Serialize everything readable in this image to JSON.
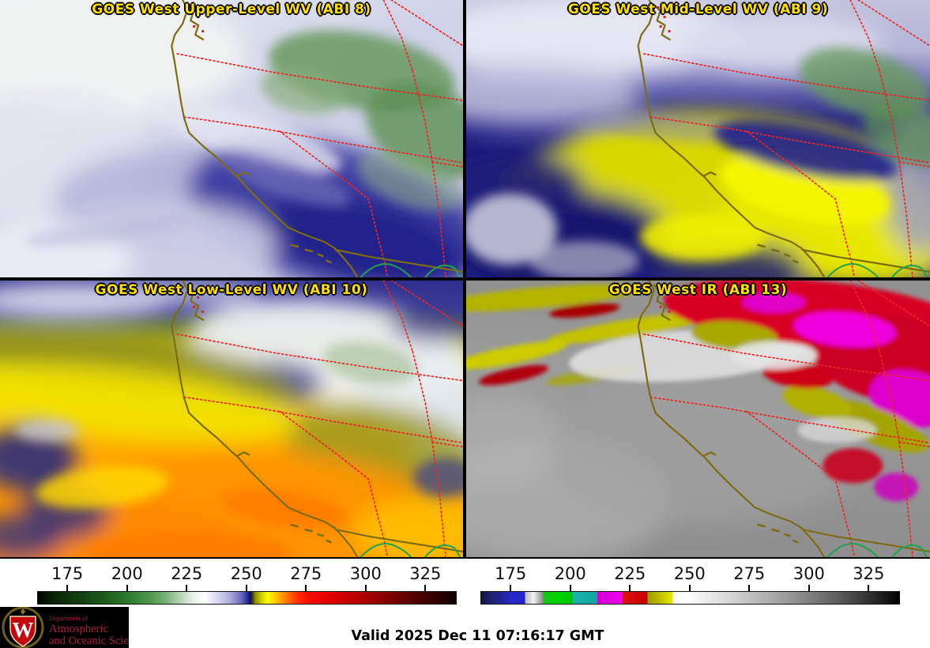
{
  "panels": [
    {
      "id": "abi8",
      "title": "GOES West Upper-Level WV (ABI 8)"
    },
    {
      "id": "abi9",
      "title": "GOES West Mid-Level WV (ABI 9)"
    },
    {
      "id": "abi10",
      "title": "GOES West Low-Level WV (ABI 10)"
    },
    {
      "id": "abi13",
      "title": "GOES West IR (ABI 13)"
    }
  ],
  "title_color": "#ffdf00",
  "map_overlay_colors": {
    "state_borders": "#ee2525",
    "coastline": "#7c6c14",
    "mexico_coast": "#1fa34d"
  },
  "colorbars": {
    "wv": {
      "tick_labels": [
        "175",
        "200",
        "225",
        "250",
        "275",
        "300",
        "325"
      ],
      "first_tick_pct": 7.2,
      "tick_step_pct": 14.22,
      "gradient": [
        [
          "#010401",
          0
        ],
        [
          "#0a2408",
          4
        ],
        [
          "#123f10",
          10
        ],
        [
          "#1d5c1c",
          16
        ],
        [
          "#2f7d2e",
          22
        ],
        [
          "#4f9a4e",
          27
        ],
        [
          "#7fb57e",
          31
        ],
        [
          "#b5d4b4",
          34
        ],
        [
          "#e9efe9",
          37
        ],
        [
          "#ffffff",
          40
        ],
        [
          "#d8d8ee",
          43
        ],
        [
          "#a9a9dc",
          46
        ],
        [
          "#6f6fc0",
          48.5
        ],
        [
          "#32329e",
          50
        ],
        [
          "#0c0c74",
          50.8
        ],
        [
          "#3d3d00",
          51.3
        ],
        [
          "#8f8f00",
          52
        ],
        [
          "#cfcf00",
          53.5
        ],
        [
          "#ffff00",
          55
        ],
        [
          "#ffd200",
          56.5
        ],
        [
          "#ffa400",
          58
        ],
        [
          "#ff6a00",
          60
        ],
        [
          "#ff3000",
          62
        ],
        [
          "#f50d00",
          65
        ],
        [
          "#e00000",
          70
        ],
        [
          "#b90000",
          76
        ],
        [
          "#8f0000",
          82
        ],
        [
          "#620000",
          88
        ],
        [
          "#370000",
          94
        ],
        [
          "#120000",
          100
        ]
      ]
    },
    "ir": {
      "tick_labels": [
        "175",
        "200",
        "225",
        "250",
        "275",
        "300",
        "325"
      ],
      "first_tick_pct": 7.2,
      "tick_step_pct": 14.22,
      "gradient": [
        [
          "#151542",
          0
        ],
        [
          "#20206a",
          2
        ],
        [
          "#24249a",
          5
        ],
        [
          "#2828c8",
          7
        ],
        [
          "#2222cc",
          10.5
        ],
        [
          "#b8b8b8",
          10.5
        ],
        [
          "#f2f2f2",
          12.5
        ],
        [
          "#8a8a8a",
          14.8
        ],
        [
          "#1dc21d",
          14.8
        ],
        [
          "#00d400",
          18
        ],
        [
          "#00c400",
          21.8
        ],
        [
          "#19b4ac",
          21.8
        ],
        [
          "#0fa8a0",
          27.8
        ],
        [
          "#d400d4",
          27.8
        ],
        [
          "#ee00ee",
          33.8
        ],
        [
          "#e01010",
          33.8
        ],
        [
          "#c40000",
          39.8
        ],
        [
          "#9c9c00",
          39.8
        ],
        [
          "#c0c000",
          43
        ],
        [
          "#eaea00",
          45.8
        ],
        [
          "#f6f6f0",
          45.8
        ],
        [
          "#ffffff",
          49
        ],
        [
          "#f4f4f4",
          52
        ],
        [
          "#dcdcdc",
          58
        ],
        [
          "#c2c2c2",
          64
        ],
        [
          "#a0a0a0",
          72
        ],
        [
          "#7a7a7a",
          80
        ],
        [
          "#4e4e4e",
          88
        ],
        [
          "#232323",
          95
        ],
        [
          "#000000",
          100
        ]
      ]
    }
  },
  "footer": {
    "timestamp": "Valid 2025 Dec 11 07:16:17 GMT"
  },
  "logo": {
    "line1": "Department of",
    "line2": "Atmospheric",
    "line3": "and Oceanic Sciences",
    "monogram": "W",
    "text_color": "#a32035",
    "shield_red": "#c5050c",
    "background": "#000000"
  }
}
